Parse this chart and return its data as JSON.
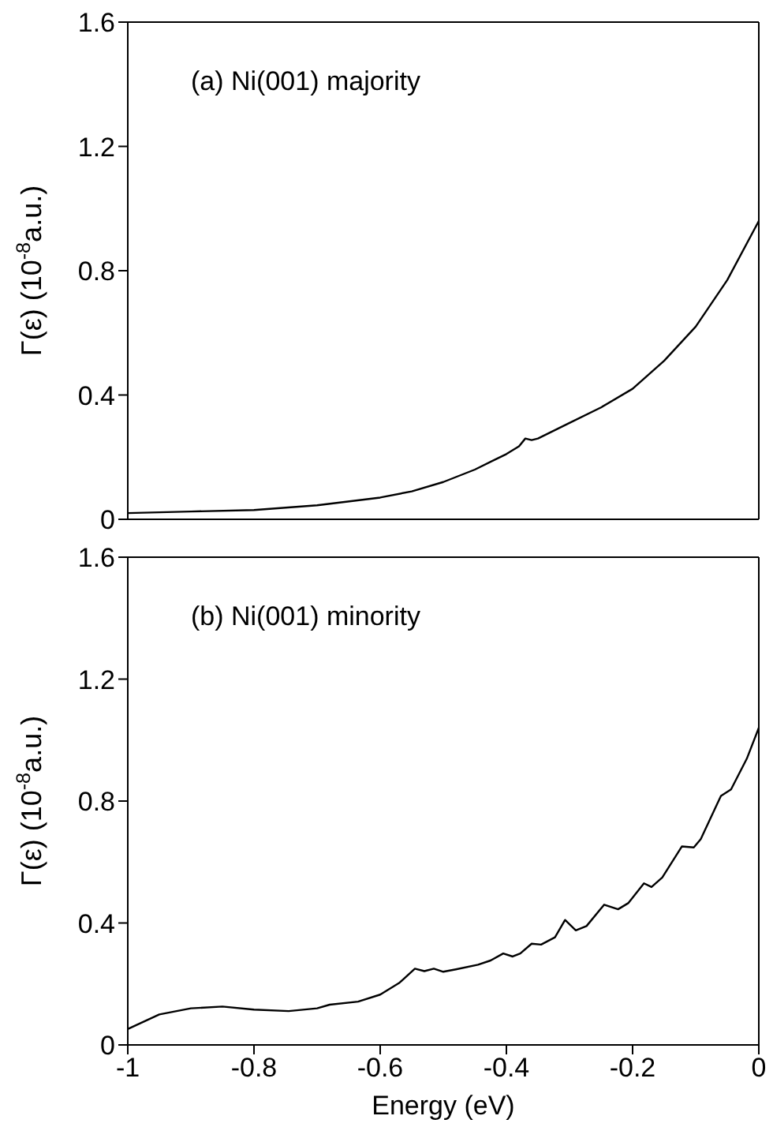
{
  "chart_data": [
    {
      "type": "line",
      "annotations": [
        "(a) Ni(001) majority"
      ],
      "ylabel": "Γ(ε) (10$^{-8}$a.u.)",
      "tick_labels": "y",
      "xlim": [
        -1,
        0
      ],
      "xticks": [
        -1,
        -0.8,
        -0.6,
        -0.4,
        -0.2,
        0
      ],
      "ylim": [
        0,
        1.6
      ],
      "yticks": [
        0,
        0.4,
        0.8,
        1.2,
        1.6
      ],
      "grid": false,
      "legend": false,
      "marker": "none",
      "line_style": "solid",
      "x": [
        -1,
        -0.9,
        -0.8,
        -0.7,
        -0.6,
        -0.55,
        -0.5,
        -0.45,
        -0.42,
        -0.4,
        -0.38,
        -0.37,
        -0.36,
        -0.35,
        -0.3,
        -0.25,
        -0.2,
        -0.15,
        -0.1,
        -0.05,
        0
      ],
      "series": [
        {
          "color": "#000000",
          "values": [
            0.02,
            0.025,
            0.03,
            0.045,
            0.07,
            0.09,
            0.12,
            0.16,
            0.19,
            0.21,
            0.235,
            0.26,
            0.255,
            0.26,
            0.31,
            0.36,
            0.42,
            0.51,
            0.62,
            0.77,
            0.96
          ]
        }
      ]
    },
    {
      "type": "line",
      "annotations": [
        "(b) Ni(001) minority"
      ],
      "xlabel": "Energy (eV)",
      "ylabel": "Γ(ε) (10$^{-8}$a.u.)",
      "xlim": [
        -1,
        0
      ],
      "xticks": [
        -1,
        -0.8,
        -0.6,
        -0.4,
        -0.2,
        0
      ],
      "ylim": [
        0,
        1.6
      ],
      "yticks": [
        0,
        0.4,
        0.8,
        1.2,
        1.6
      ],
      "grid": false,
      "legend": false,
      "marker": "none",
      "line_style": "solid",
      "x": [
        -1,
        -0.95,
        -0.9,
        -0.85,
        -0.8,
        -0.745,
        -0.7,
        -0.68,
        -0.635,
        -0.6,
        -0.57,
        -0.545,
        -0.53,
        -0.515,
        -0.5,
        -0.48,
        -0.445,
        -0.425,
        -0.405,
        -0.39,
        -0.378,
        -0.36,
        -0.345,
        -0.323,
        -0.307,
        -0.29,
        -0.273,
        -0.245,
        -0.223,
        -0.207,
        -0.182,
        -0.17,
        -0.153,
        -0.122,
        -0.103,
        -0.092,
        -0.06,
        -0.044,
        -0.019,
        0
      ],
      "series": [
        {
          "color": "#000000",
          "values": [
            0.052,
            0.1,
            0.12,
            0.126,
            0.116,
            0.111,
            0.12,
            0.132,
            0.142,
            0.165,
            0.203,
            0.25,
            0.242,
            0.25,
            0.24,
            0.248,
            0.263,
            0.277,
            0.3,
            0.29,
            0.3,
            0.332,
            0.329,
            0.353,
            0.41,
            0.376,
            0.39,
            0.46,
            0.445,
            0.465,
            0.53,
            0.518,
            0.549,
            0.651,
            0.648,
            0.675,
            0.817,
            0.838,
            0.939,
            1.04
          ]
        }
      ]
    }
  ]
}
